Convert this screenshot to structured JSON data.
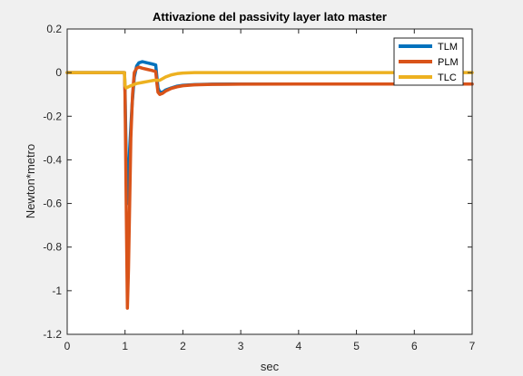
{
  "chart_data": {
    "type": "line",
    "title": "Attivazione del passivity layer lato master",
    "xlabel": "sec",
    "ylabel": "Newton*metro",
    "xlim": [
      0,
      7
    ],
    "ylim": [
      -1.2,
      0.2
    ],
    "xticks": [
      0,
      1,
      2,
      3,
      4,
      5,
      6,
      7
    ],
    "yticks": [
      0.2,
      0,
      -0.2,
      -0.4,
      -0.6,
      -0.8,
      -1,
      -1.2
    ],
    "xtick_labels": [
      "0",
      "1",
      "2",
      "3",
      "4",
      "5",
      "6",
      "7"
    ],
    "ytick_labels": [
      "0.2",
      "0",
      "-0.2",
      "-0.4",
      "-0.6",
      "-0.8",
      "-1",
      "-1.2"
    ],
    "grid": false,
    "legend_position": "top-right",
    "series": [
      {
        "name": "TLM",
        "color": "#0072bd",
        "x": [
          0,
          0.99,
          1.0,
          1.03,
          1.05,
          1.08,
          1.12,
          1.16,
          1.2,
          1.24,
          1.3,
          1.38,
          1.46,
          1.53,
          1.55,
          1.57,
          1.6,
          1.65,
          1.7,
          1.8,
          1.9,
          2.0,
          2.2,
          2.5,
          3.0,
          3.5,
          4.0,
          5.0,
          6.0,
          7.0
        ],
        "y": [
          0,
          0,
          -0.08,
          -0.55,
          -0.6,
          -0.35,
          -0.15,
          -0.02,
          0.03,
          0.045,
          0.05,
          0.045,
          0.04,
          0.035,
          -0.02,
          -0.07,
          -0.09,
          -0.09,
          -0.08,
          -0.07,
          -0.062,
          -0.058,
          -0.055,
          -0.053,
          -0.052,
          -0.052,
          -0.052,
          -0.052,
          -0.052,
          -0.052
        ]
      },
      {
        "name": "PLM",
        "color": "#d95319",
        "x": [
          0,
          0.99,
          1.0,
          1.02,
          1.04,
          1.06,
          1.08,
          1.1,
          1.13,
          1.16,
          1.2,
          1.24,
          1.3,
          1.38,
          1.46,
          1.53,
          1.55,
          1.57,
          1.6,
          1.65,
          1.7,
          1.8,
          1.9,
          2.0,
          2.2,
          2.5,
          3.0,
          4.0,
          5.0,
          6.0,
          7.0
        ],
        "y": [
          0,
          0,
          -0.1,
          -0.6,
          -1.08,
          -0.9,
          -0.6,
          -0.3,
          -0.1,
          0.0,
          0.02,
          0.025,
          0.02,
          0.015,
          0.01,
          0.005,
          -0.05,
          -0.09,
          -0.1,
          -0.095,
          -0.085,
          -0.072,
          -0.065,
          -0.06,
          -0.056,
          -0.054,
          -0.053,
          -0.052,
          -0.052,
          -0.052,
          -0.052
        ]
      },
      {
        "name": "TLC",
        "color": "#edb120",
        "x": [
          0,
          0.99,
          1.0,
          1.02,
          1.1,
          1.2,
          1.3,
          1.4,
          1.5,
          1.55,
          1.6,
          1.7,
          1.8,
          1.9,
          2.0,
          2.2,
          2.5,
          3.0,
          4.0,
          5.0,
          6.0,
          7.0
        ],
        "y": [
          0,
          0,
          -0.06,
          -0.07,
          -0.06,
          -0.05,
          -0.045,
          -0.04,
          -0.035,
          -0.035,
          -0.035,
          -0.02,
          -0.01,
          -0.005,
          -0.002,
          0,
          0,
          0,
          0,
          0,
          0,
          0
        ]
      }
    ]
  }
}
